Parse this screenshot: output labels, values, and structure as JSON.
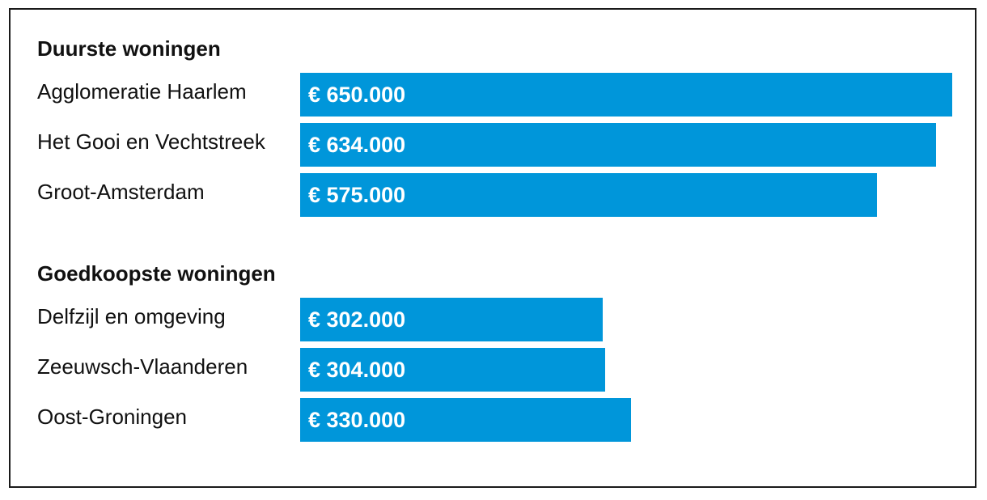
{
  "colors": {
    "bar": "#0096da",
    "bar_text": "#ffffff",
    "text": "#111111",
    "border": "#1a1a1a"
  },
  "chart_data": [
    {
      "type": "bar",
      "orientation": "horizontal",
      "title": "Duurste woningen",
      "categories": [
        "Agglomeratie Haarlem",
        "Het Gooi en Vechtstreek",
        "Groot-Amsterdam"
      ],
      "values": [
        650000,
        634000,
        575000
      ],
      "value_labels": [
        "€ 650.000",
        "€ 634.000",
        "€ 575.000"
      ],
      "xlim": [
        0,
        650000
      ]
    },
    {
      "type": "bar",
      "orientation": "horizontal",
      "title": "Goedkoopste woningen",
      "categories": [
        "Delfzijl en omgeving",
        "Zeeuwsch-Vlaanderen",
        "Oost-Groningen"
      ],
      "values": [
        302000,
        304000,
        330000
      ],
      "value_labels": [
        "€ 302.000",
        "€ 304.000",
        "€ 330.000"
      ],
      "xlim": [
        0,
        650000
      ]
    }
  ]
}
